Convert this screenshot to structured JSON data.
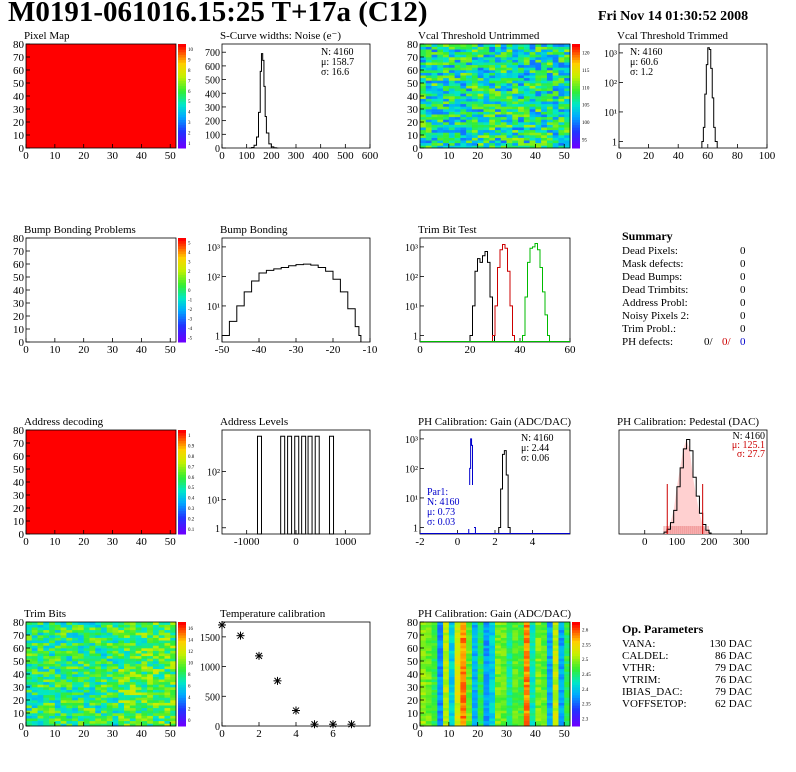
{
  "header": {
    "title": "M0191-061016.15:25 T+17a (C12)",
    "date": "Fri Nov 14 01:30:52 2008"
  },
  "panels": [
    {
      "id": "pixel-map",
      "title": "Pixel Map",
      "type": "heatmap",
      "fill": "uniform-red",
      "xticks": [
        0,
        10,
        20,
        30,
        40,
        50
      ],
      "yticks": [
        0,
        10,
        20,
        30,
        40,
        50,
        60,
        70,
        80
      ],
      "colorbar": [
        1,
        2,
        3,
        4,
        5,
        6,
        7,
        8,
        9,
        10
      ]
    },
    {
      "id": "scurve-noise",
      "title": "S-Curve widths: Noise (e⁻)",
      "type": "histogram",
      "xlim": [
        0,
        600
      ],
      "ylim": [
        0,
        760
      ],
      "xticks": [
        0,
        100,
        200,
        300,
        400,
        500,
        600
      ],
      "yticks": [
        0,
        100,
        200,
        300,
        400,
        500,
        600,
        700
      ],
      "stats": [
        "N: 4160",
        "μ: 158.7",
        "σ: 16.6"
      ],
      "chart_data": {
        "type": "area",
        "x": [
          110,
          120,
          130,
          140,
          148,
          155,
          160,
          165,
          170,
          175,
          180,
          190,
          200,
          210,
          220
        ],
        "y": [
          0,
          4,
          20,
          80,
          260,
          560,
          690,
          640,
          450,
          230,
          110,
          30,
          8,
          2,
          0
        ]
      }
    },
    {
      "id": "vcal-untrimmed",
      "title": "Vcal Threshold Untrimmed",
      "type": "heatmap",
      "fill": "noise-green",
      "xticks": [
        0,
        10,
        20,
        30,
        40,
        50
      ],
      "yticks": [
        0,
        10,
        20,
        30,
        40,
        50,
        60,
        70,
        80
      ],
      "colorbar": [
        95,
        100,
        105,
        110,
        115,
        120
      ]
    },
    {
      "id": "vcal-trimmed",
      "title": "Vcal Threshold Trimmed",
      "type": "histogram",
      "log": true,
      "xlim": [
        0,
        100
      ],
      "yticks": [
        1,
        10,
        100,
        1000
      ],
      "xticks": [
        0,
        20,
        40,
        60,
        80,
        100
      ],
      "stats": [
        "N: 4160",
        "μ: 60.6",
        "σ: 1.2"
      ],
      "chart_data": {
        "type": "line",
        "x": [
          56,
          57,
          58,
          59,
          60,
          61,
          62,
          63,
          64,
          65
        ],
        "y": [
          1,
          3,
          40,
          400,
          1500,
          1300,
          300,
          30,
          3,
          1
        ]
      }
    },
    {
      "id": "bump-problems",
      "title": "Bump Bonding Problems",
      "type": "heatmap",
      "fill": "empty",
      "xticks": [
        0,
        10,
        20,
        30,
        40,
        50
      ],
      "yticks": [
        0,
        10,
        20,
        30,
        40,
        50,
        60,
        70,
        80
      ],
      "colorbar": [
        -5,
        -4,
        -3,
        -2,
        -1,
        0,
        1,
        2,
        3,
        4,
        5
      ]
    },
    {
      "id": "bump-bonding",
      "title": "Bump Bonding",
      "type": "histogram",
      "log": true,
      "xlim": [
        -50,
        -10
      ],
      "xticks": [
        -50,
        -40,
        -30,
        -20,
        -10
      ],
      "yticks": [
        1,
        10,
        100,
        1000
      ],
      "chart_data": {
        "type": "line",
        "x": [
          -50,
          -48,
          -46,
          -44,
          -42,
          -40,
          -38,
          -36,
          -34,
          -32,
          -30,
          -28,
          -26,
          -24,
          -22,
          -20,
          -18,
          -16,
          -14,
          -13
        ],
        "y": [
          1,
          3,
          10,
          30,
          70,
          130,
          160,
          180,
          200,
          230,
          250,
          260,
          240,
          200,
          150,
          80,
          30,
          8,
          2,
          1
        ]
      }
    },
    {
      "id": "trim-bit-test",
      "title": "Trim Bit Test",
      "type": "histogram",
      "log": true,
      "xlim": [
        0,
        60
      ],
      "xticks": [
        0,
        20,
        40,
        60
      ],
      "yticks": [
        1,
        10,
        100,
        1000
      ],
      "chart_data": {
        "type": "line",
        "series": [
          {
            "color": "#000000",
            "x": [
              20,
              21,
              22,
              23,
              24,
              25,
              26,
              27,
              28,
              29
            ],
            "y": [
              1,
              10,
              150,
              400,
              300,
              500,
              700,
              300,
              20,
              1
            ]
          },
          {
            "color": "#cc0000",
            "x": [
              29,
              30,
              31,
              32,
              33,
              34,
              35,
              36,
              37
            ],
            "y": [
              1,
              10,
              200,
              800,
              1200,
              900,
              150,
              10,
              1
            ]
          },
          {
            "color": "#00bb00",
            "x": [
              41,
              42,
              43,
              44,
              45,
              46,
              47,
              48,
              49,
              50,
              51
            ],
            "y": [
              1,
              20,
              300,
              900,
              1000,
              1300,
              800,
              200,
              30,
              5,
              1
            ]
          }
        ]
      }
    },
    {
      "id": "address-decoding",
      "title": "Address decoding",
      "type": "heatmap",
      "fill": "uniform-red",
      "xticks": [
        0,
        10,
        20,
        30,
        40,
        50
      ],
      "yticks": [
        0,
        10,
        20,
        30,
        40,
        50,
        60,
        70,
        80
      ],
      "colorbar": [
        0.1,
        0.2,
        0.3,
        0.4,
        0.5,
        0.6,
        0.7,
        0.8,
        0.9,
        1
      ]
    },
    {
      "id": "address-levels",
      "title": "Address Levels",
      "type": "histogram",
      "log": true,
      "xlim": [
        -1500,
        1500
      ],
      "xticks": [
        -1000,
        0,
        1000
      ],
      "yticks": [
        1,
        10,
        100
      ],
      "chart_data": {
        "type": "bar",
        "x": [
          -740,
          -270,
          -130,
          15,
          155,
          285,
          430,
          720
        ],
        "y": [
          1800,
          1800,
          1800,
          1800,
          1800,
          1800,
          1800,
          1800
        ]
      }
    },
    {
      "id": "ph-gain",
      "title": "PH Calibration: Gain (ADC/DAC)",
      "type": "histogram",
      "log": true,
      "xlim": [
        -2,
        6
      ],
      "xticks": [
        -2,
        0,
        2,
        4
      ],
      "yticks": [
        1,
        10,
        100,
        1000
      ],
      "stats": [
        "N: 4160",
        "μ: 2.44",
        "σ: 0.06"
      ],
      "stats2": [
        "Par1:",
        "N: 4160",
        "μ: 0.73",
        "σ: 0.03"
      ],
      "chart_data": {
        "type": "line",
        "series": [
          {
            "color": "#000000",
            "x": [
              2.2,
              2.3,
              2.4,
              2.5,
              2.6,
              2.7
            ],
            "y": [
              1,
              20,
              300,
              400,
              60,
              1
            ]
          },
          {
            "color": "#0000cc",
            "x": [
              0.6,
              0.65,
              0.7,
              0.75,
              0.8,
              0.85
            ],
            "y": [
              1,
              100,
              1000,
              600,
              20,
              1
            ]
          }
        ]
      }
    },
    {
      "id": "ph-pedestal",
      "title": "PH Calibration: Pedestal (DAC)",
      "type": "histogram",
      "xlim": [
        -80,
        380
      ],
      "xticks": [
        0,
        100,
        200,
        300
      ],
      "stats": [
        "N: 4160",
        "μ: 125.1",
        "σ: 27.7"
      ],
      "chart_data": {
        "type": "area",
        "x": [
          60,
          70,
          80,
          90,
          100,
          110,
          120,
          130,
          140,
          150,
          160,
          170,
          180,
          190,
          200
        ],
        "y": [
          2,
          5,
          12,
          25,
          50,
          70,
          90,
          100,
          88,
          60,
          40,
          22,
          10,
          4,
          1
        ]
      }
    },
    {
      "id": "trim-bits",
      "title": "Trim Bits",
      "type": "heatmap",
      "fill": "noise-blue",
      "xticks": [
        0,
        10,
        20,
        30,
        40,
        50
      ],
      "yticks": [
        0,
        10,
        20,
        30,
        40,
        50,
        60,
        70,
        80
      ],
      "colorbar": [
        0,
        2,
        4,
        6,
        8,
        10,
        12,
        14,
        16
      ]
    },
    {
      "id": "temperature-calibration",
      "title": "Temperature calibration",
      "type": "scatter",
      "xlim": [
        0,
        8
      ],
      "ylim": [
        0,
        1750
      ],
      "xticks": [
        0,
        2,
        4,
        6
      ],
      "yticks": [
        0,
        500,
        1000,
        1500
      ],
      "chart_data": {
        "type": "scatter",
        "x": [
          0,
          1,
          2,
          3,
          4,
          5,
          6,
          7
        ],
        "y": [
          1700,
          1520,
          1180,
          760,
          260,
          30,
          30,
          30
        ]
      }
    },
    {
      "id": "ph-gain-map",
      "title": "PH Calibration: Gain (ADC/DAC)",
      "type": "heatmap",
      "fill": "columns",
      "xticks": [
        0,
        10,
        20,
        30,
        40,
        50
      ],
      "yticks": [
        0,
        10,
        20,
        30,
        40,
        50,
        60,
        70,
        80
      ],
      "colorbar": [
        2.3,
        2.35,
        2.4,
        2.45,
        2.5,
        2.55,
        2.6
      ]
    }
  ],
  "summary": {
    "title": "Summary",
    "rows": [
      {
        "label": "Dead Pixels:",
        "value": "0"
      },
      {
        "label": "Mask defects:",
        "value": "0"
      },
      {
        "label": "Dead Bumps:",
        "value": "0"
      },
      {
        "label": "Dead Trimbits:",
        "value": "0"
      },
      {
        "label": "Address Probl:",
        "value": "0"
      },
      {
        "label": "Noisy Pixels 2:",
        "value": "0"
      },
      {
        "label": "Trim Probl.:",
        "value": "0"
      }
    ],
    "ph_label": "PH defects:",
    "ph_values": [
      {
        "v": "0/",
        "c": "#000000"
      },
      {
        "v": "0/",
        "c": "#cc0000"
      },
      {
        "v": "0",
        "c": "#0000cc"
      }
    ]
  },
  "op_params": {
    "title": "Op. Parameters",
    "rows": [
      {
        "label": "VANA:",
        "value": "130 DAC"
      },
      {
        "label": "CALDEL:",
        "value": "86 DAC"
      },
      {
        "label": "VTHR:",
        "value": "79 DAC"
      },
      {
        "label": "VTRIM:",
        "value": "76 DAC"
      },
      {
        "label": "IBIAS_DAC:",
        "value": "79 DAC"
      },
      {
        "label": "VOFFSETOP:",
        "value": "62 DAC"
      }
    ]
  }
}
